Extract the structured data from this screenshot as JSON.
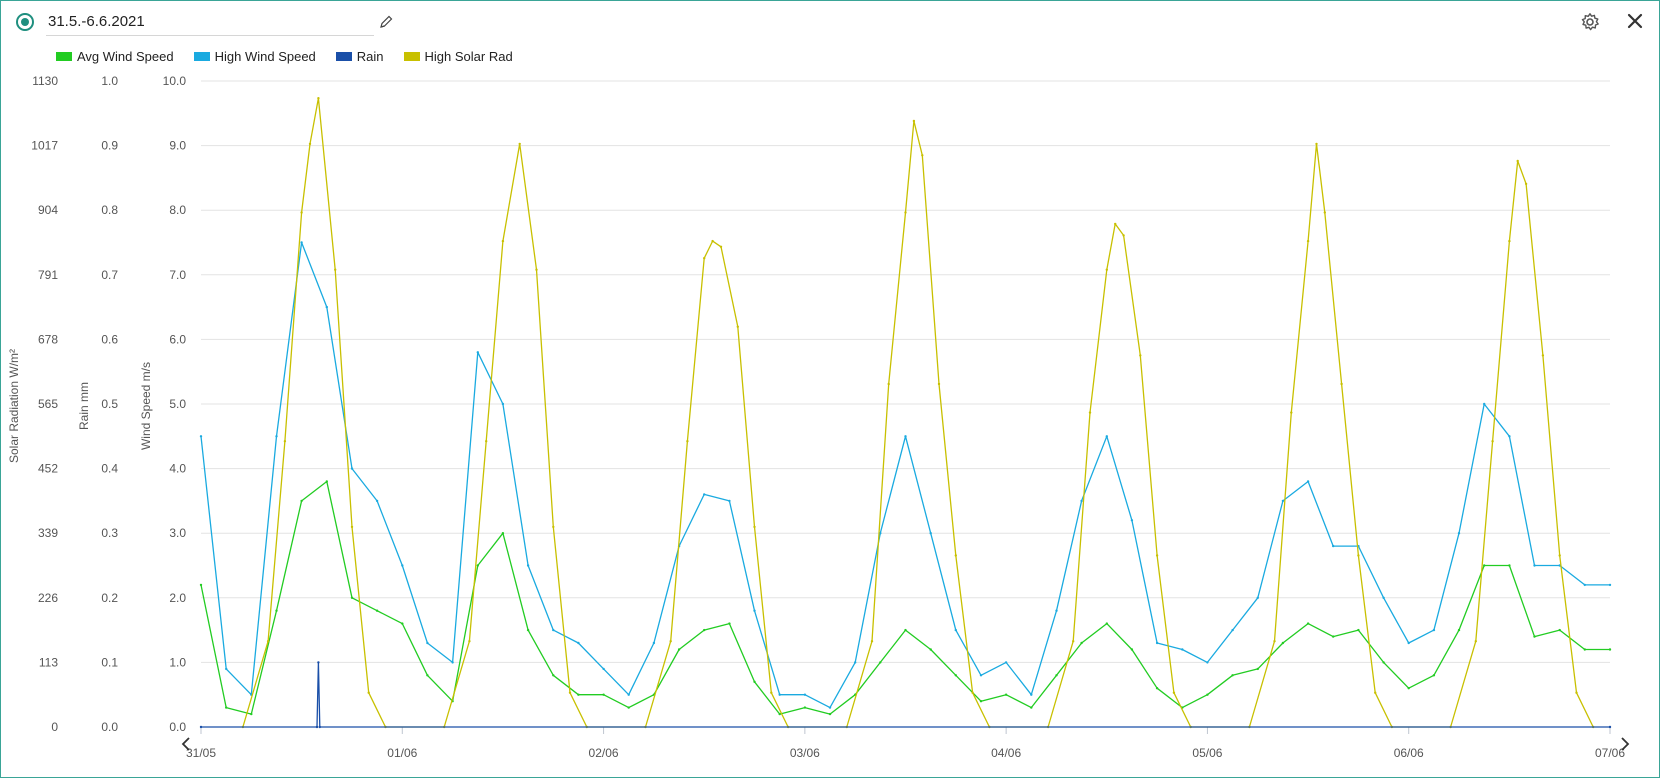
{
  "header": {
    "title": "31.5.-6.6.2021",
    "icons": [
      "status-indicator-icon",
      "pencil-icon",
      "gear-icon",
      "close-icon"
    ]
  },
  "legend": [
    {
      "name": "Avg Wind Speed",
      "color": "#22cc22"
    },
    {
      "name": "High Wind Speed",
      "color": "#1aaae0"
    },
    {
      "name": "Rain",
      "color": "#1a4fa8"
    },
    {
      "name": "High Solar Rad",
      "color": "#c8c000"
    }
  ],
  "chart_data": {
    "type": "line",
    "xlabel": "",
    "x_ticks": [
      "31/05",
      "01/06",
      "02/06",
      "03/06",
      "04/06",
      "05/06",
      "06/06",
      "07/06"
    ],
    "x_range": [
      "2021-05-31 00:00",
      "2021-06-07 00:00"
    ],
    "axes": [
      {
        "id": "solar",
        "label": "Solar Radiation W/m²",
        "range": [
          0,
          1130
        ],
        "ticks": [
          "0",
          "113",
          "226",
          "339",
          "452",
          "565",
          "678",
          "791",
          "904",
          "1017",
          "1130"
        ]
      },
      {
        "id": "rain",
        "label": "Rain mm",
        "range": [
          0,
          1.0
        ],
        "ticks": [
          "0.0",
          "0.1",
          "0.2",
          "0.3",
          "0.4",
          "0.5",
          "0.6",
          "0.7",
          "0.8",
          "0.9",
          "1.0"
        ]
      },
      {
        "id": "wind",
        "label": "Wind Speed m/s",
        "range": [
          0,
          10.0
        ],
        "ticks": [
          "0.0",
          "1.0",
          "2.0",
          "3.0",
          "4.0",
          "5.0",
          "6.0",
          "7.0",
          "8.0",
          "9.0",
          "10.0"
        ]
      }
    ],
    "grid": true,
    "series": [
      {
        "name": "Avg Wind Speed",
        "axis": "wind",
        "color": "#22cc22",
        "x": [
          "2021-05-31 00:00",
          "2021-05-31 03:00",
          "2021-05-31 06:00",
          "2021-05-31 09:00",
          "2021-05-31 12:00",
          "2021-05-31 15:00",
          "2021-05-31 18:00",
          "2021-05-31 21:00",
          "2021-06-01 00:00",
          "2021-06-01 03:00",
          "2021-06-01 06:00",
          "2021-06-01 09:00",
          "2021-06-01 12:00",
          "2021-06-01 15:00",
          "2021-06-01 18:00",
          "2021-06-01 21:00",
          "2021-06-02 00:00",
          "2021-06-02 03:00",
          "2021-06-02 06:00",
          "2021-06-02 09:00",
          "2021-06-02 12:00",
          "2021-06-02 15:00",
          "2021-06-02 18:00",
          "2021-06-02 21:00",
          "2021-06-03 00:00",
          "2021-06-03 03:00",
          "2021-06-03 06:00",
          "2021-06-03 09:00",
          "2021-06-03 12:00",
          "2021-06-03 15:00",
          "2021-06-03 18:00",
          "2021-06-03 21:00",
          "2021-06-04 00:00",
          "2021-06-04 03:00",
          "2021-06-04 06:00",
          "2021-06-04 09:00",
          "2021-06-04 12:00",
          "2021-06-04 15:00",
          "2021-06-04 18:00",
          "2021-06-04 21:00",
          "2021-06-05 00:00",
          "2021-06-05 03:00",
          "2021-06-05 06:00",
          "2021-06-05 09:00",
          "2021-06-05 12:00",
          "2021-06-05 15:00",
          "2021-06-05 18:00",
          "2021-06-05 21:00",
          "2021-06-06 00:00",
          "2021-06-06 03:00",
          "2021-06-06 06:00",
          "2021-06-06 09:00",
          "2021-06-06 12:00",
          "2021-06-06 15:00",
          "2021-06-06 18:00",
          "2021-06-06 21:00",
          "2021-06-07 00:00"
        ],
        "values": [
          2.2,
          0.3,
          0.2,
          1.8,
          3.5,
          3.8,
          2.0,
          1.8,
          1.6,
          0.8,
          0.4,
          2.5,
          3.0,
          1.5,
          0.8,
          0.5,
          0.5,
          0.3,
          0.5,
          1.2,
          1.5,
          1.6,
          0.7,
          0.2,
          0.3,
          0.2,
          0.5,
          1.0,
          1.5,
          1.2,
          0.8,
          0.4,
          0.5,
          0.3,
          0.8,
          1.3,
          1.6,
          1.2,
          0.6,
          0.3,
          0.5,
          0.8,
          0.9,
          1.3,
          1.6,
          1.4,
          1.5,
          1.0,
          0.6,
          0.8,
          1.5,
          2.5,
          2.5,
          1.4,
          1.5,
          1.2,
          1.2
        ]
      },
      {
        "name": "High Wind Speed",
        "axis": "wind",
        "color": "#1aaae0",
        "x": [
          "2021-05-31 00:00",
          "2021-05-31 03:00",
          "2021-05-31 06:00",
          "2021-05-31 09:00",
          "2021-05-31 12:00",
          "2021-05-31 15:00",
          "2021-05-31 18:00",
          "2021-05-31 21:00",
          "2021-06-01 00:00",
          "2021-06-01 03:00",
          "2021-06-01 06:00",
          "2021-06-01 09:00",
          "2021-06-01 12:00",
          "2021-06-01 15:00",
          "2021-06-01 18:00",
          "2021-06-01 21:00",
          "2021-06-02 00:00",
          "2021-06-02 03:00",
          "2021-06-02 06:00",
          "2021-06-02 09:00",
          "2021-06-02 12:00",
          "2021-06-02 15:00",
          "2021-06-02 18:00",
          "2021-06-02 21:00",
          "2021-06-03 00:00",
          "2021-06-03 03:00",
          "2021-06-03 06:00",
          "2021-06-03 09:00",
          "2021-06-03 12:00",
          "2021-06-03 15:00",
          "2021-06-03 18:00",
          "2021-06-03 21:00",
          "2021-06-04 00:00",
          "2021-06-04 03:00",
          "2021-06-04 06:00",
          "2021-06-04 09:00",
          "2021-06-04 12:00",
          "2021-06-04 15:00",
          "2021-06-04 18:00",
          "2021-06-04 21:00",
          "2021-06-05 00:00",
          "2021-06-05 03:00",
          "2021-06-05 06:00",
          "2021-06-05 09:00",
          "2021-06-05 12:00",
          "2021-06-05 15:00",
          "2021-06-05 18:00",
          "2021-06-05 21:00",
          "2021-06-06 00:00",
          "2021-06-06 03:00",
          "2021-06-06 06:00",
          "2021-06-06 09:00",
          "2021-06-06 12:00",
          "2021-06-06 15:00",
          "2021-06-06 18:00",
          "2021-06-06 21:00",
          "2021-06-07 00:00"
        ],
        "values": [
          4.5,
          0.9,
          0.5,
          4.5,
          7.5,
          6.5,
          4.0,
          3.5,
          2.5,
          1.3,
          1.0,
          5.8,
          5.0,
          2.5,
          1.5,
          1.3,
          0.9,
          0.5,
          1.3,
          2.8,
          3.6,
          3.5,
          1.8,
          0.5,
          0.5,
          0.3,
          1.0,
          3.0,
          4.5,
          3.0,
          1.5,
          0.8,
          1.0,
          0.5,
          1.8,
          3.5,
          4.5,
          3.2,
          1.3,
          1.2,
          1.0,
          1.5,
          2.0,
          3.5,
          3.8,
          2.8,
          2.8,
          2.0,
          1.3,
          1.5,
          3.0,
          5.0,
          4.5,
          2.5,
          2.5,
          2.2,
          2.2
        ]
      },
      {
        "name": "Rain",
        "axis": "rain",
        "color": "#1a4fa8",
        "x": [
          "2021-05-31 00:00",
          "2021-05-31 13:50",
          "2021-05-31 14:00",
          "2021-05-31 14:10",
          "2021-06-07 00:00"
        ],
        "values": [
          0.0,
          0.0,
          0.1,
          0.0,
          0.0
        ]
      },
      {
        "name": "High Solar Rad",
        "axis": "solar",
        "color": "#c8c000",
        "x": [
          "2021-05-31 05:00",
          "2021-05-31 08:00",
          "2021-05-31 10:00",
          "2021-05-31 12:00",
          "2021-05-31 13:00",
          "2021-05-31 14:00",
          "2021-05-31 16:00",
          "2021-05-31 18:00",
          "2021-05-31 20:00",
          "2021-05-31 22:00",
          "2021-06-01 05:00",
          "2021-06-01 08:00",
          "2021-06-01 10:00",
          "2021-06-01 12:00",
          "2021-06-01 14:00",
          "2021-06-01 16:00",
          "2021-06-01 18:00",
          "2021-06-01 20:00",
          "2021-06-01 22:00",
          "2021-06-02 05:00",
          "2021-06-02 08:00",
          "2021-06-02 10:00",
          "2021-06-02 12:00",
          "2021-06-02 13:00",
          "2021-06-02 14:00",
          "2021-06-02 16:00",
          "2021-06-02 18:00",
          "2021-06-02 20:00",
          "2021-06-02 22:00",
          "2021-06-03 05:00",
          "2021-06-03 08:00",
          "2021-06-03 10:00",
          "2021-06-03 12:00",
          "2021-06-03 13:00",
          "2021-06-03 14:00",
          "2021-06-03 16:00",
          "2021-06-03 18:00",
          "2021-06-03 20:00",
          "2021-06-03 22:00",
          "2021-06-04 05:00",
          "2021-06-04 08:00",
          "2021-06-04 10:00",
          "2021-06-04 12:00",
          "2021-06-04 13:00",
          "2021-06-04 14:00",
          "2021-06-04 16:00",
          "2021-06-04 18:00",
          "2021-06-04 20:00",
          "2021-06-04 22:00",
          "2021-06-05 05:00",
          "2021-06-05 08:00",
          "2021-06-05 10:00",
          "2021-06-05 12:00",
          "2021-06-05 13:00",
          "2021-06-05 14:00",
          "2021-06-05 16:00",
          "2021-06-05 18:00",
          "2021-06-05 20:00",
          "2021-06-05 22:00",
          "2021-06-06 05:00",
          "2021-06-06 08:00",
          "2021-06-06 10:00",
          "2021-06-06 12:00",
          "2021-06-06 13:00",
          "2021-06-06 14:00",
          "2021-06-06 16:00",
          "2021-06-06 18:00",
          "2021-06-06 20:00",
          "2021-06-06 22:00"
        ],
        "values": [
          0,
          150,
          500,
          900,
          1020,
          1100,
          800,
          350,
          60,
          0,
          0,
          150,
          500,
          850,
          1020,
          800,
          350,
          60,
          0,
          0,
          150,
          500,
          820,
          850,
          840,
          700,
          350,
          60,
          0,
          0,
          150,
          600,
          900,
          1060,
          1000,
          600,
          300,
          60,
          0,
          0,
          150,
          550,
          800,
          880,
          860,
          650,
          300,
          60,
          0,
          0,
          150,
          550,
          850,
          1020,
          900,
          600,
          300,
          60,
          0,
          0,
          150,
          500,
          850,
          990,
          950,
          650,
          300,
          60,
          0
        ]
      }
    ]
  }
}
